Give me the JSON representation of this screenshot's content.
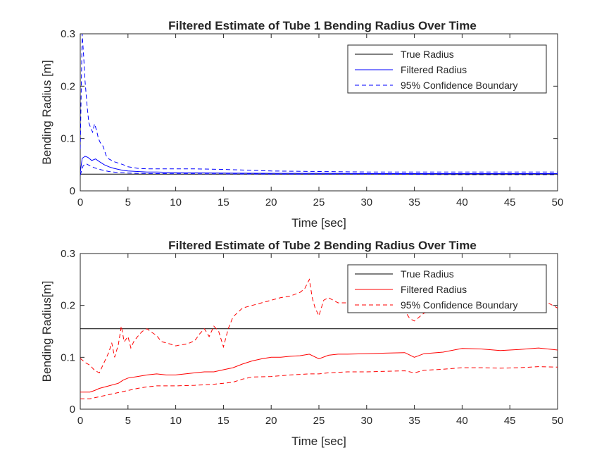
{
  "chart_data": [
    {
      "type": "line",
      "title": "Filtered Estimate of Tube 1 Bending Radius Over Time",
      "xlabel": "Time [sec]",
      "ylabel": "Bending Radius [m]",
      "xlim": [
        0,
        50
      ],
      "ylim": [
        0,
        0.3
      ],
      "xticks": [
        "0",
        "5",
        "10",
        "15",
        "20",
        "25",
        "30",
        "35",
        "40",
        "45",
        "50"
      ],
      "yticks": [
        "0",
        "0.1",
        "0.2",
        "0.3"
      ],
      "grid": false,
      "legend_position": "top-right",
      "series": [
        {
          "name": "True Radius",
          "color": "#000000",
          "style": "solid",
          "x": [
            0,
            50
          ],
          "y": [
            0.032,
            0.032
          ]
        },
        {
          "name": "Filtered Radius",
          "color": "#0000ff",
          "style": "solid",
          "x": [
            0,
            0.2,
            0.5,
            0.8,
            1.2,
            1.6,
            2.0,
            2.5,
            3.0,
            3.5,
            4.0,
            4.5,
            5.0,
            6,
            7,
            8,
            10,
            12,
            15,
            20,
            25,
            30,
            35,
            40,
            45,
            50
          ],
          "y": [
            0.035,
            0.062,
            0.066,
            0.064,
            0.058,
            0.061,
            0.056,
            0.05,
            0.046,
            0.043,
            0.041,
            0.039,
            0.038,
            0.037,
            0.036,
            0.036,
            0.035,
            0.0345,
            0.034,
            0.0335,
            0.0335,
            0.033,
            0.033,
            0.033,
            0.033,
            0.033
          ]
        },
        {
          "name": "95% Confidence Boundary",
          "color": "#0000ff",
          "style": "dashed",
          "x": [
            0,
            0.2,
            0.35,
            0.5,
            0.7,
            0.9,
            1.1,
            1.3,
            1.5,
            1.7,
            1.9,
            2.1,
            2.4,
            2.7,
            3.0,
            3.5,
            4.0,
            4.5,
            5.0,
            6,
            7,
            8,
            10,
            12,
            15,
            20,
            25,
            30,
            35,
            40,
            45,
            50
          ],
          "y": [
            0.08,
            0.3,
            0.26,
            0.21,
            0.165,
            0.13,
            0.12,
            0.112,
            0.128,
            0.116,
            0.1,
            0.092,
            0.085,
            0.068,
            0.061,
            0.056,
            0.053,
            0.05,
            0.046,
            0.043,
            0.042,
            0.042,
            0.042,
            0.042,
            0.041,
            0.038,
            0.037,
            0.036,
            0.036,
            0.036,
            0.036,
            0.036
          ]
        },
        {
          "name": "95% Confidence Boundary (lower)",
          "color": "#0000ff",
          "style": "dashed",
          "x": [
            0,
            0.3,
            0.6,
            1.0,
            1.5,
            2.0,
            2.5,
            3.0,
            4.0,
            5.0,
            6,
            8,
            10,
            15,
            20,
            30,
            40,
            50
          ],
          "y": [
            0.03,
            0.048,
            0.052,
            0.048,
            0.044,
            0.041,
            0.039,
            0.037,
            0.035,
            0.034,
            0.0335,
            0.033,
            0.0328,
            0.0325,
            0.032,
            0.032,
            0.031,
            0.031
          ]
        }
      ],
      "legend": [
        "True Radius",
        "Filtered Radius",
        "95% Confidence Boundary"
      ]
    },
    {
      "type": "line",
      "title": "Filtered Estimate of Tube 2 Bending Radius Over Time",
      "xlabel": "Time [sec]",
      "ylabel": "Bending Radius[m]",
      "xlim": [
        0,
        50
      ],
      "ylim": [
        0,
        0.3
      ],
      "xticks": [
        "0",
        "5",
        "10",
        "15",
        "20",
        "25",
        "30",
        "35",
        "40",
        "45",
        "50"
      ],
      "yticks": [
        "0",
        "0.1",
        "0.2",
        "0.3"
      ],
      "grid": false,
      "legend_position": "top-right",
      "series": [
        {
          "name": "True Radius",
          "color": "#000000",
          "style": "solid",
          "x": [
            0,
            50
          ],
          "y": [
            0.155,
            0.155
          ]
        },
        {
          "name": "Filtered Radius",
          "color": "#ff0000",
          "style": "solid",
          "x": [
            0,
            1,
            1.5,
            2,
            3,
            4,
            4.5,
            5,
            6,
            7,
            8,
            9,
            10,
            11,
            12,
            13,
            14,
            15,
            16,
            17,
            18,
            19,
            20,
            21,
            22,
            23,
            24,
            25,
            26,
            27,
            28,
            30,
            32,
            34,
            35,
            36,
            38,
            40,
            42,
            44,
            46,
            48,
            50
          ],
          "y": [
            0.033,
            0.033,
            0.036,
            0.04,
            0.045,
            0.05,
            0.056,
            0.06,
            0.063,
            0.066,
            0.068,
            0.066,
            0.066,
            0.068,
            0.07,
            0.072,
            0.072,
            0.076,
            0.08,
            0.087,
            0.093,
            0.097,
            0.1,
            0.1,
            0.102,
            0.103,
            0.106,
            0.097,
            0.104,
            0.106,
            0.106,
            0.107,
            0.108,
            0.109,
            0.1,
            0.107,
            0.11,
            0.117,
            0.116,
            0.113,
            0.115,
            0.118,
            0.114
          ]
        },
        {
          "name": "95% Confidence Boundary",
          "color": "#ff0000",
          "style": "dashed",
          "x": [
            0,
            0.5,
            1,
            1.5,
            2,
            2.5,
            3,
            3.3,
            3.6,
            4,
            4.3,
            4.6,
            5,
            5.3,
            5.6,
            6,
            6.5,
            7,
            7.5,
            8,
            8.5,
            9,
            9.5,
            10,
            10.5,
            11,
            11.5,
            12,
            12.5,
            13,
            13.5,
            14,
            14.5,
            15,
            15.5,
            16,
            17,
            18,
            19,
            20,
            21,
            22,
            23,
            23.5,
            24,
            24.3,
            24.6,
            25,
            25.5,
            26,
            27,
            28,
            29,
            30,
            31,
            32,
            33,
            34,
            34.5,
            35,
            36,
            37,
            38,
            39,
            40,
            41,
            42,
            43,
            44,
            45,
            46,
            47,
            48,
            49,
            50
          ],
          "y": [
            0.098,
            0.09,
            0.085,
            0.075,
            0.07,
            0.09,
            0.11,
            0.128,
            0.1,
            0.125,
            0.16,
            0.13,
            0.14,
            0.118,
            0.13,
            0.14,
            0.15,
            0.155,
            0.148,
            0.142,
            0.13,
            0.128,
            0.125,
            0.122,
            0.124,
            0.125,
            0.128,
            0.132,
            0.145,
            0.155,
            0.14,
            0.16,
            0.15,
            0.12,
            0.155,
            0.178,
            0.195,
            0.2,
            0.205,
            0.21,
            0.215,
            0.218,
            0.225,
            0.232,
            0.25,
            0.215,
            0.195,
            0.18,
            0.21,
            0.215,
            0.205,
            0.205,
            0.21,
            0.205,
            0.21,
            0.205,
            0.2,
            0.19,
            0.175,
            0.17,
            0.185,
            0.19,
            0.195,
            0.2,
            0.205,
            0.2,
            0.205,
            0.2,
            0.21,
            0.2,
            0.205,
            0.21,
            0.2,
            0.205,
            0.195
          ]
        },
        {
          "name": "95% Confidence Boundary (lower)",
          "color": "#ff0000",
          "style": "dashed",
          "x": [
            0,
            1,
            1.5,
            2,
            3,
            4,
            5,
            6,
            7,
            8,
            10,
            12,
            14,
            15,
            16,
            17,
            18,
            20,
            22,
            24,
            25,
            26,
            28,
            30,
            32,
            34,
            35,
            36,
            38,
            40,
            42,
            44,
            46,
            48,
            50
          ],
          "y": [
            0.02,
            0.02,
            0.022,
            0.024,
            0.028,
            0.032,
            0.036,
            0.04,
            0.043,
            0.045,
            0.045,
            0.046,
            0.048,
            0.05,
            0.052,
            0.058,
            0.062,
            0.063,
            0.066,
            0.068,
            0.068,
            0.07,
            0.072,
            0.072,
            0.073,
            0.074,
            0.07,
            0.075,
            0.077,
            0.08,
            0.08,
            0.079,
            0.08,
            0.082,
            0.081
          ]
        }
      ],
      "legend": [
        "True Radius",
        "Filtered Radius",
        "95% Confidence Boundary"
      ]
    }
  ]
}
